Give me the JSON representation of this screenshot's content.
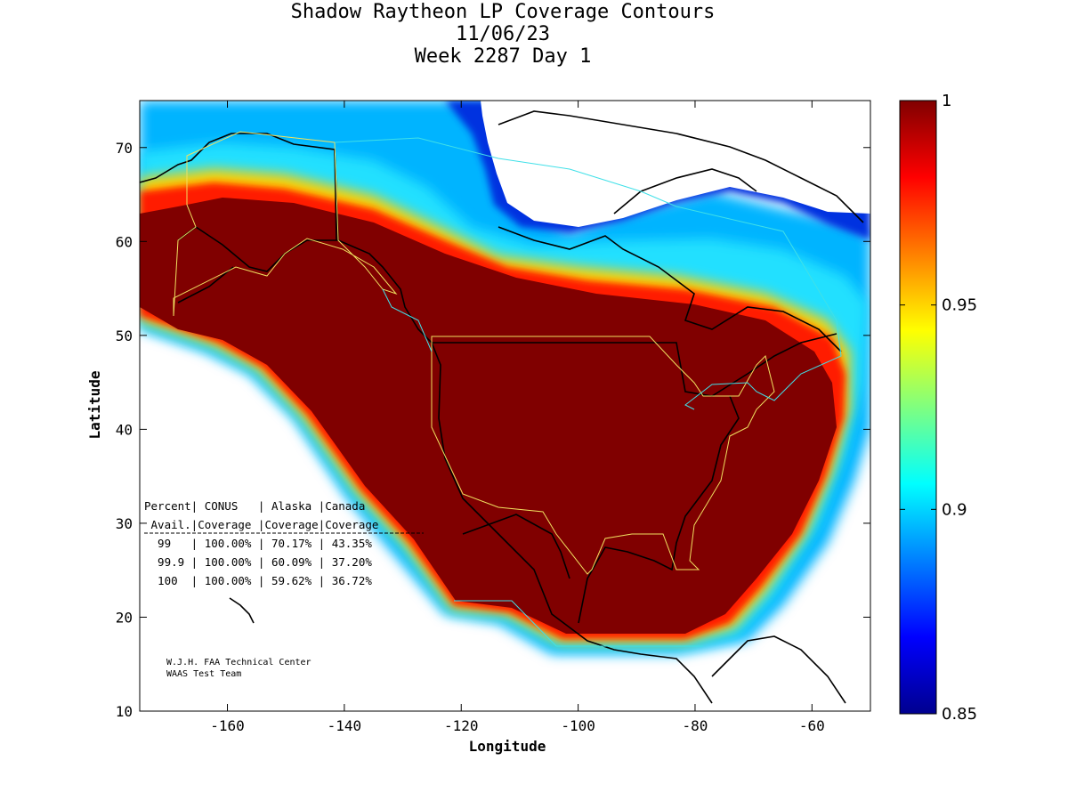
{
  "title": {
    "line1": "Shadow Raytheon LP Coverage Contours",
    "line2": "11/06/23",
    "line3": "Week 2287 Day 1"
  },
  "axes": {
    "xlabel": "Longitude",
    "ylabel": "Latitude",
    "xlim": [
      -175,
      -50
    ],
    "ylim": [
      10,
      75
    ],
    "xticks": [
      -160,
      -140,
      -120,
      -100,
      -80,
      -60
    ],
    "yticks": [
      10,
      20,
      30,
      40,
      50,
      60,
      70
    ]
  },
  "colorbar": {
    "min": 0.85,
    "max": 1,
    "ticks": [
      {
        "value": 1,
        "label": "1"
      },
      {
        "value": 0.95,
        "label": "0.95"
      },
      {
        "value": 0.9,
        "label": "0.9"
      },
      {
        "value": 0.85,
        "label": "0.85"
      }
    ]
  },
  "table": {
    "header1": "Percent| CONUS   | Alaska |Canada",
    "header2": " Avail.|Coverage |Coverage|Coverage",
    "rows": [
      "  99   | 100.00% | 70.17% | 43.35%",
      "  99.9 | 100.00% | 60.09% | 37.20%",
      "  100  | 100.00% | 59.62% | 36.72%"
    ]
  },
  "credit": {
    "line1": "W.J.H. FAA Technical Center",
    "line2": "WAAS Test Team"
  },
  "colors": {
    "coverage_max": "#800000",
    "background": "#ffffff",
    "region_outline_yellow": "#f0e060",
    "region_outline_cyan": "#40e0e8"
  }
}
